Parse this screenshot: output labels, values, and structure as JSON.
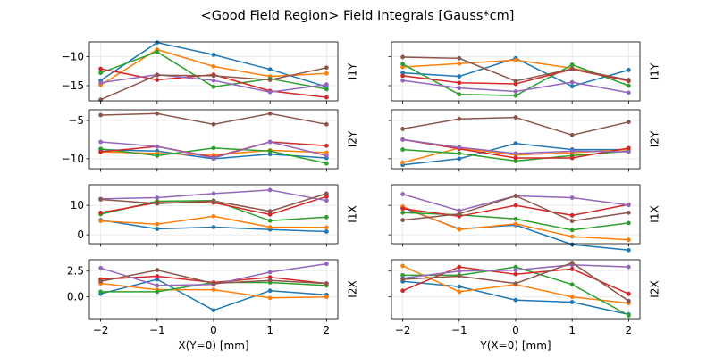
{
  "title": "<Good Field Region> Field Integrals [Gauss*cm]",
  "colors": [
    "#1f77b4",
    "#ff7f0e",
    "#2ca02c",
    "#d62728",
    "#9467bd",
    "#8c564b"
  ],
  "chart_data": [
    {
      "type": "line",
      "name": "I1Y-vs-X",
      "ylabel": "I1Y",
      "xlabel": "",
      "x": [
        -2,
        -1,
        0,
        1,
        2
      ],
      "xticks": [
        -2,
        -1,
        0,
        1,
        2
      ],
      "xlim": [
        -2.2,
        2.2
      ],
      "ylim": [
        -17.6,
        -7.5
      ],
      "yticks": [
        -15,
        -10
      ],
      "ytick_labels": [
        "−15",
        "−10"
      ],
      "grid": true,
      "series": [
        {
          "name": "s1",
          "values": [
            -14.1,
            -7.6,
            -9.7,
            -12.2,
            -15.2
          ]
        },
        {
          "name": "s2",
          "values": [
            -14.9,
            -8.8,
            -11.7,
            -13.4,
            -12.9
          ]
        },
        {
          "name": "s3",
          "values": [
            -12.8,
            -9.2,
            -15.2,
            -13.8,
            -15.6
          ]
        },
        {
          "name": "s4",
          "values": [
            -12.1,
            -14.0,
            -13.1,
            -15.9,
            -17.0
          ]
        },
        {
          "name": "s5",
          "values": [
            -14.5,
            -13.1,
            -14.1,
            -16.1,
            -14.8
          ]
        },
        {
          "name": "s6",
          "values": [
            -17.4,
            -13.2,
            -13.3,
            -14.0,
            -11.9
          ]
        }
      ]
    },
    {
      "type": "line",
      "name": "I1Y-vs-Y",
      "ylabel": "I1Y",
      "xlabel": "",
      "x": [
        -2,
        -1,
        0,
        1,
        2
      ],
      "xticks": [
        -2,
        -1,
        0,
        1,
        2
      ],
      "xlim": [
        -2.2,
        2.2
      ],
      "ylim": [
        -17.6,
        -7.5
      ],
      "yticks": [
        -15,
        -10
      ],
      "ytick_labels": [
        "",
        ""
      ],
      "grid": true,
      "series": [
        {
          "name": "s1",
          "values": [
            -12.8,
            -13.4,
            -10.3,
            -15.1,
            -12.3
          ]
        },
        {
          "name": "s2",
          "values": [
            -11.8,
            -11.2,
            -10.6,
            -12.0,
            -14.1
          ]
        },
        {
          "name": "s3",
          "values": [
            -11.3,
            -16.5,
            -16.7,
            -11.4,
            -15.0
          ]
        },
        {
          "name": "s4",
          "values": [
            -13.3,
            -14.5,
            -14.7,
            -12.2,
            -14.2
          ]
        },
        {
          "name": "s5",
          "values": [
            -14.1,
            -15.4,
            -16.0,
            -14.4,
            -16.2
          ]
        },
        {
          "name": "s6",
          "values": [
            -10.1,
            -10.3,
            -14.2,
            -12.1,
            -14.0
          ]
        }
      ]
    },
    {
      "type": "line",
      "name": "I2Y-vs-X",
      "ylabel": "I2Y",
      "xlabel": "",
      "x": [
        -2,
        -1,
        0,
        1,
        2
      ],
      "xticks": [
        -2,
        -1,
        0,
        1,
        2
      ],
      "xlim": [
        -2.2,
        2.2
      ],
      "ylim": [
        -11.3,
        -3.6
      ],
      "yticks": [
        -10,
        -5
      ],
      "ytick_labels": [
        "−10",
        "−5"
      ],
      "grid": true,
      "series": [
        {
          "name": "s1",
          "values": [
            -8.8,
            -9.0,
            -10.0,
            -9.4,
            -9.9
          ]
        },
        {
          "name": "s2",
          "values": [
            -9.1,
            -9.3,
            -9.5,
            -8.9,
            -9.2
          ]
        },
        {
          "name": "s3",
          "values": [
            -8.7,
            -9.6,
            -8.6,
            -9.0,
            -10.6
          ]
        },
        {
          "name": "s4",
          "values": [
            -9.1,
            -8.4,
            -9.8,
            -7.8,
            -8.3
          ]
        },
        {
          "name": "s5",
          "values": [
            -7.8,
            -8.4,
            -9.9,
            -7.8,
            -9.6
          ]
        },
        {
          "name": "s6",
          "values": [
            -4.3,
            -4.1,
            -5.5,
            -4.1,
            -5.5
          ]
        }
      ]
    },
    {
      "type": "line",
      "name": "I2Y-vs-Y",
      "ylabel": "I2Y",
      "xlabel": "",
      "x": [
        -2,
        -1,
        0,
        1,
        2
      ],
      "xticks": [
        -2,
        -1,
        0,
        1,
        2
      ],
      "xlim": [
        -2.2,
        2.2
      ],
      "ylim": [
        -11.3,
        -3.6
      ],
      "yticks": [
        -10,
        -5
      ],
      "ytick_labels": [
        "",
        ""
      ],
      "grid": true,
      "series": [
        {
          "name": "s1",
          "values": [
            -10.8,
            -10.0,
            -8.0,
            -8.8,
            -8.8
          ]
        },
        {
          "name": "s2",
          "values": [
            -10.5,
            -8.6,
            -9.5,
            -9.2,
            -8.8
          ]
        },
        {
          "name": "s3",
          "values": [
            -8.8,
            -9.3,
            -10.3,
            -9.6,
            -9.0
          ]
        },
        {
          "name": "s4",
          "values": [
            -7.5,
            -8.7,
            -9.9,
            -9.9,
            -8.6
          ]
        },
        {
          "name": "s5",
          "values": [
            -7.5,
            -8.5,
            -9.3,
            -9.0,
            -9.1
          ]
        },
        {
          "name": "s6",
          "values": [
            -6.1,
            -4.8,
            -4.6,
            -6.9,
            -5.2
          ]
        }
      ]
    },
    {
      "type": "line",
      "name": "I1X-vs-X",
      "ylabel": "I1X",
      "xlabel": "",
      "x": [
        -2,
        -1,
        0,
        1,
        2
      ],
      "xticks": [
        -2,
        -1,
        0,
        1,
        2
      ],
      "xlim": [
        -2.2,
        2.2
      ],
      "ylim": [
        -3,
        17
      ],
      "yticks": [
        0,
        10
      ],
      "ytick_labels": [
        "0",
        "10"
      ],
      "grid": true,
      "series": [
        {
          "name": "s1",
          "values": [
            5.0,
            2.0,
            2.6,
            1.8,
            1.1
          ]
        },
        {
          "name": "s2",
          "values": [
            4.7,
            3.6,
            6.3,
            2.6,
            2.5
          ]
        },
        {
          "name": "s3",
          "values": [
            7.0,
            11.4,
            11.6,
            4.8,
            6.0
          ]
        },
        {
          "name": "s4",
          "values": [
            7.5,
            10.9,
            10.9,
            6.9,
            13.0
          ]
        },
        {
          "name": "s5",
          "values": [
            12.2,
            12.6,
            14.0,
            15.2,
            11.6
          ]
        },
        {
          "name": "s6",
          "values": [
            12.0,
            10.6,
            11.5,
            8.0,
            14.0
          ]
        }
      ]
    },
    {
      "type": "line",
      "name": "I1X-vs-Y",
      "ylabel": "I1X",
      "xlabel": "",
      "x": [
        -2,
        -1,
        0,
        1,
        2
      ],
      "xticks": [
        -2,
        -1,
        0,
        1,
        2
      ],
      "xlim": [
        -2.2,
        2.2
      ],
      "ylim": [
        -3,
        17
      ],
      "yticks": [
        0,
        10
      ],
      "ytick_labels": [
        "",
        ""
      ],
      "grid": true,
      "series": [
        {
          "name": "s1",
          "values": [
            9.2,
            2.0,
            3.3,
            -3.3,
            -5.2
          ]
        },
        {
          "name": "s2",
          "values": [
            9.6,
            1.8,
            3.7,
            -0.6,
            -1.7
          ]
        },
        {
          "name": "s3",
          "values": [
            7.5,
            6.8,
            5.4,
            1.6,
            4.0
          ]
        },
        {
          "name": "s4",
          "values": [
            8.9,
            6.3,
            10.0,
            6.6,
            10.3
          ]
        },
        {
          "name": "s5",
          "values": [
            13.8,
            8.2,
            13.2,
            12.6,
            10.1
          ]
        },
        {
          "name": "s6",
          "values": [
            5.0,
            7.1,
            13.2,
            4.7,
            7.5
          ]
        }
      ]
    },
    {
      "type": "line",
      "name": "I2X-vs-X",
      "ylabel": "I2X",
      "xlabel": "X(Y=0) [mm]",
      "x": [
        -2,
        -1,
        0,
        1,
        2
      ],
      "xticks": [
        -2,
        -1,
        0,
        1,
        2
      ],
      "xlim": [
        -2.2,
        2.2
      ],
      "ylim": [
        -2.1,
        3.6
      ],
      "yticks": [
        0,
        2.5
      ],
      "ytick_labels": [
        "0.0",
        "2.5"
      ],
      "grid": true,
      "series": [
        {
          "name": "s1",
          "values": [
            0.3,
            1.7,
            -1.3,
            0.6,
            0.2
          ]
        },
        {
          "name": "s2",
          "values": [
            1.3,
            0.7,
            0.7,
            -0.1,
            0.0
          ]
        },
        {
          "name": "s3",
          "values": [
            0.5,
            0.5,
            1.4,
            1.4,
            1.1
          ]
        },
        {
          "name": "s4",
          "values": [
            1.7,
            2.0,
            1.4,
            1.9,
            1.3
          ]
        },
        {
          "name": "s5",
          "values": [
            2.8,
            1.1,
            1.2,
            2.4,
            3.2
          ]
        },
        {
          "name": "s6",
          "values": [
            1.5,
            2.6,
            1.3,
            1.6,
            1.3
          ]
        }
      ]
    },
    {
      "type": "line",
      "name": "I2X-vs-Y",
      "ylabel": "I2X",
      "xlabel": "Y(X=0) [mm]",
      "x": [
        -2,
        -1,
        0,
        1,
        2
      ],
      "xticks": [
        -2,
        -1,
        0,
        1,
        2
      ],
      "xlim": [
        -2.2,
        2.2
      ],
      "ylim": [
        -2.1,
        3.6
      ],
      "yticks": [
        0,
        2.5
      ],
      "ytick_labels": [
        "",
        ""
      ],
      "grid": true,
      "series": [
        {
          "name": "s1",
          "values": [
            1.5,
            1.0,
            -0.3,
            -0.5,
            -1.7
          ]
        },
        {
          "name": "s2",
          "values": [
            3.0,
            0.5,
            1.2,
            0.0,
            -0.6
          ]
        },
        {
          "name": "s3",
          "values": [
            2.1,
            2.1,
            2.9,
            1.2,
            -1.8
          ]
        },
        {
          "name": "s4",
          "values": [
            0.6,
            2.9,
            2.2,
            2.7,
            0.3
          ]
        },
        {
          "name": "s5",
          "values": [
            1.8,
            2.5,
            2.6,
            3.1,
            2.9
          ]
        },
        {
          "name": "s6",
          "values": [
            1.7,
            2.0,
            1.3,
            3.3,
            -0.4
          ]
        }
      ]
    }
  ]
}
